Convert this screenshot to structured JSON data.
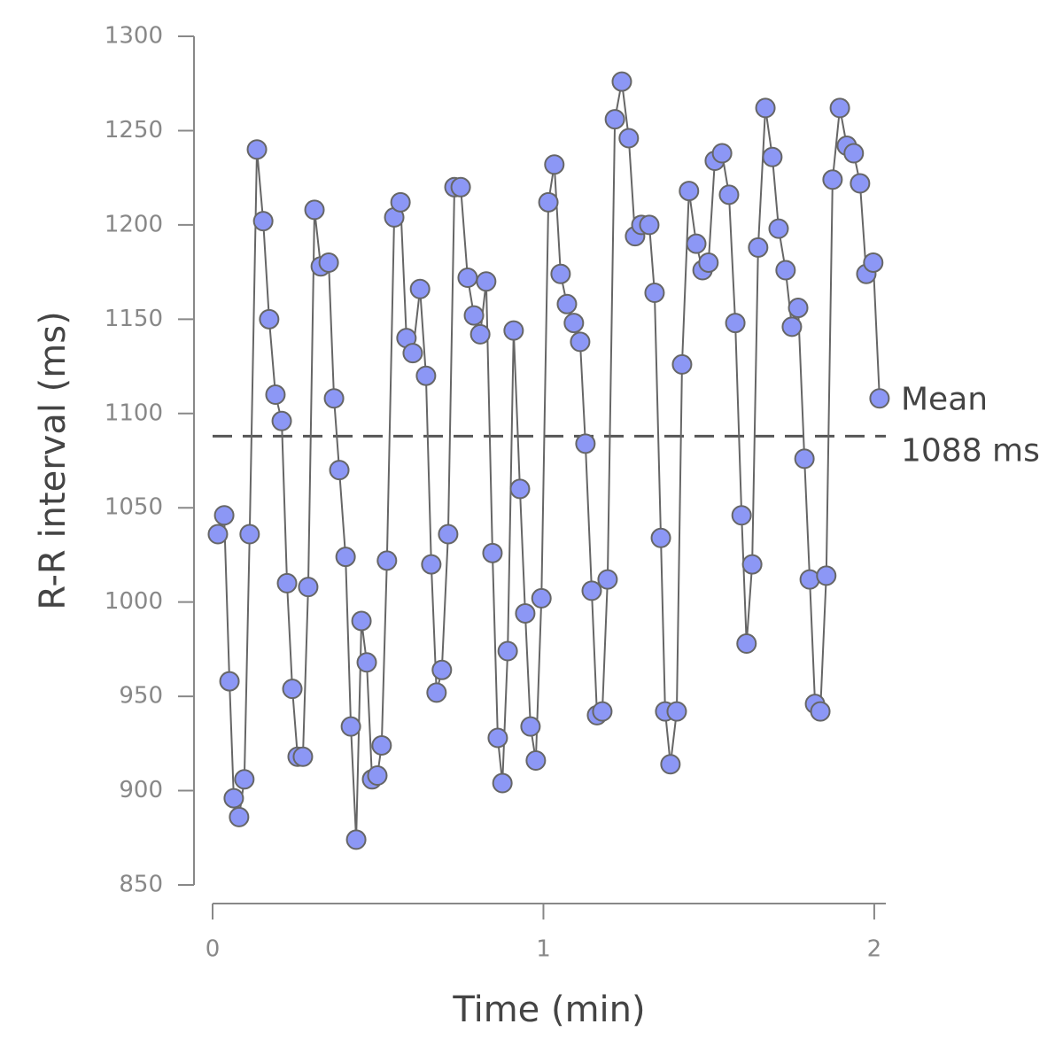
{
  "chart_data": {
    "type": "line",
    "x_label": "Time (min)",
    "y_label": "R-R interval (ms)",
    "xlim": [
      0,
      2.035
    ],
    "ylim": [
      850,
      1300
    ],
    "xticks": [
      0,
      1,
      2
    ],
    "yticks": [
      850,
      900,
      950,
      1000,
      1050,
      1100,
      1150,
      1200,
      1250,
      1300
    ],
    "mean": 1088,
    "mean_label": [
      "Mean",
      "1088 ms"
    ],
    "series": [
      {
        "color": "#8c97f5",
        "line_color": "#666666",
        "x": [
          0.016,
          0.035,
          0.051,
          0.064,
          0.08,
          0.096,
          0.112,
          0.134,
          0.153,
          0.171,
          0.19,
          0.209,
          0.225,
          0.241,
          0.257,
          0.273,
          0.289,
          0.308,
          0.327,
          0.351,
          0.367,
          0.383,
          0.402,
          0.418,
          0.434,
          0.45,
          0.466,
          0.482,
          0.498,
          0.511,
          0.527,
          0.549,
          0.568,
          0.586,
          0.605,
          0.627,
          0.645,
          0.661,
          0.677,
          0.693,
          0.712,
          0.731,
          0.75,
          0.771,
          0.79,
          0.809,
          0.827,
          0.846,
          0.862,
          0.876,
          0.892,
          0.91,
          0.929,
          0.945,
          0.961,
          0.977,
          0.994,
          1.015,
          1.033,
          1.052,
          1.071,
          1.092,
          1.111,
          1.127,
          1.146,
          1.162,
          1.178,
          1.194,
          1.216,
          1.237,
          1.258,
          1.277,
          1.296,
          1.32,
          1.336,
          1.355,
          1.368,
          1.384,
          1.403,
          1.419,
          1.44,
          1.462,
          1.481,
          1.499,
          1.518,
          1.54,
          1.561,
          1.58,
          1.599,
          1.614,
          1.631,
          1.649,
          1.671,
          1.692,
          1.711,
          1.732,
          1.751,
          1.77,
          1.789,
          1.805,
          1.821,
          1.837,
          1.855,
          1.874,
          1.896,
          1.917,
          1.938,
          1.957,
          1.976,
          1.997,
          2.016
        ],
        "values": [
          1036,
          1046,
          958,
          896,
          886,
          906,
          1036,
          1240,
          1202,
          1150,
          1110,
          1096,
          1010,
          954,
          918,
          918,
          1008,
          1208,
          1178,
          1180,
          1108,
          1070,
          1024,
          934,
          874,
          990,
          968,
          906,
          908,
          924,
          1022,
          1204,
          1212,
          1140,
          1132,
          1166,
          1120,
          1020,
          952,
          964,
          1036,
          1220,
          1220,
          1172,
          1152,
          1142,
          1170,
          1026,
          928,
          904,
          974,
          1144,
          1060,
          994,
          934,
          916,
          1002,
          1212,
          1232,
          1174,
          1158,
          1148,
          1138,
          1084,
          1006,
          940,
          942,
          1012,
          1256,
          1276,
          1246,
          1194,
          1200,
          1200,
          1164,
          1034,
          942,
          914,
          942,
          1126,
          1218,
          1190,
          1176,
          1180,
          1234,
          1238,
          1216,
          1148,
          1046,
          978,
          1020,
          1188,
          1262,
          1236,
          1198,
          1176,
          1146,
          1156,
          1076,
          1012,
          946,
          942,
          1014,
          1224,
          1262,
          1242,
          1238,
          1222,
          1174,
          1180,
          1108
        ]
      }
    ]
  }
}
